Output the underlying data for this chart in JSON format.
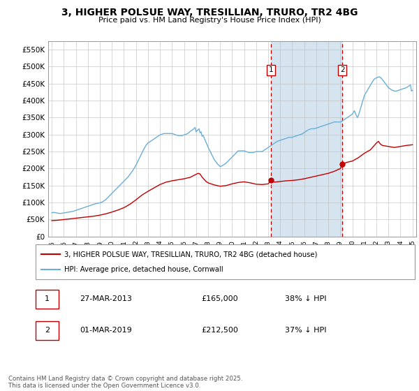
{
  "title": "3, HIGHER POLSUE WAY, TRESILLIAN, TRURO, TR2 4BG",
  "subtitle": "Price paid vs. HM Land Registry's House Price Index (HPI)",
  "ylim": [
    0,
    575000
  ],
  "yticks": [
    0,
    50000,
    100000,
    150000,
    200000,
    250000,
    300000,
    350000,
    400000,
    450000,
    500000,
    550000
  ],
  "xlim_start": 1994.7,
  "xlim_end": 2025.3,
  "marker1_date": 2013.23,
  "marker2_date": 2019.17,
  "marker1_price": 165000,
  "marker2_price": 212500,
  "legend_line1": "3, HIGHER POLSUE WAY, TRESILLIAN, TRURO, TR2 4BG (detached house)",
  "legend_line2": "HPI: Average price, detached house, Cornwall",
  "table_row1": [
    "1",
    "27-MAR-2013",
    "£165,000",
    "38% ↓ HPI"
  ],
  "table_row2": [
    "2",
    "01-MAR-2019",
    "£212,500",
    "37% ↓ HPI"
  ],
  "footer": "Contains HM Land Registry data © Crown copyright and database right 2025.\nThis data is licensed under the Open Government Licence v3.0.",
  "hpi_color": "#6baed6",
  "price_color": "#c00000",
  "shading_color": "#d6e4f0",
  "grid_color": "#bbbbbb",
  "hpi_data": [
    [
      1995.0,
      70000
    ],
    [
      1995.08,
      70500
    ],
    [
      1995.17,
      71000
    ],
    [
      1995.25,
      70500
    ],
    [
      1995.33,
      70000
    ],
    [
      1995.42,
      69500
    ],
    [
      1995.5,
      69000
    ],
    [
      1995.58,
      68500
    ],
    [
      1995.67,
      68000
    ],
    [
      1995.75,
      68000
    ],
    [
      1995.83,
      68500
    ],
    [
      1995.92,
      69000
    ],
    [
      1996.0,
      69500
    ],
    [
      1996.08,
      70000
    ],
    [
      1996.17,
      70500
    ],
    [
      1996.25,
      71000
    ],
    [
      1996.33,
      71500
    ],
    [
      1996.42,
      72000
    ],
    [
      1996.5,
      72500
    ],
    [
      1996.58,
      73000
    ],
    [
      1996.67,
      73500
    ],
    [
      1996.75,
      74000
    ],
    [
      1996.83,
      75000
    ],
    [
      1996.92,
      76000
    ],
    [
      1997.0,
      77000
    ],
    [
      1997.08,
      78000
    ],
    [
      1997.17,
      79000
    ],
    [
      1997.25,
      80000
    ],
    [
      1997.33,
      81000
    ],
    [
      1997.42,
      82000
    ],
    [
      1997.5,
      83000
    ],
    [
      1997.58,
      84000
    ],
    [
      1997.67,
      85000
    ],
    [
      1997.75,
      86000
    ],
    [
      1997.83,
      87000
    ],
    [
      1997.92,
      88000
    ],
    [
      1998.0,
      89000
    ],
    [
      1998.08,
      90000
    ],
    [
      1998.17,
      91000
    ],
    [
      1998.25,
      92000
    ],
    [
      1998.33,
      93000
    ],
    [
      1998.42,
      94000
    ],
    [
      1998.5,
      95000
    ],
    [
      1998.58,
      96000
    ],
    [
      1998.67,
      97000
    ],
    [
      1998.75,
      97500
    ],
    [
      1998.83,
      98000
    ],
    [
      1998.92,
      98500
    ],
    [
      1999.0,
      99000
    ],
    [
      1999.08,
      100000
    ],
    [
      1999.17,
      101000
    ],
    [
      1999.25,
      103000
    ],
    [
      1999.33,
      105000
    ],
    [
      1999.42,
      107000
    ],
    [
      1999.5,
      109000
    ],
    [
      1999.58,
      112000
    ],
    [
      1999.67,
      115000
    ],
    [
      1999.75,
      118000
    ],
    [
      1999.83,
      121000
    ],
    [
      1999.92,
      124000
    ],
    [
      2000.0,
      127000
    ],
    [
      2000.08,
      130000
    ],
    [
      2000.17,
      133000
    ],
    [
      2000.25,
      136000
    ],
    [
      2000.33,
      139000
    ],
    [
      2000.42,
      142000
    ],
    [
      2000.5,
      145000
    ],
    [
      2000.58,
      148000
    ],
    [
      2000.67,
      151000
    ],
    [
      2000.75,
      154000
    ],
    [
      2000.83,
      157000
    ],
    [
      2000.92,
      160000
    ],
    [
      2001.0,
      163000
    ],
    [
      2001.08,
      166000
    ],
    [
      2001.17,
      169000
    ],
    [
      2001.25,
      172000
    ],
    [
      2001.33,
      175000
    ],
    [
      2001.42,
      179000
    ],
    [
      2001.5,
      183000
    ],
    [
      2001.58,
      187000
    ],
    [
      2001.67,
      191000
    ],
    [
      2001.75,
      195000
    ],
    [
      2001.83,
      200000
    ],
    [
      2001.92,
      205000
    ],
    [
      2002.0,
      210000
    ],
    [
      2002.08,
      216000
    ],
    [
      2002.17,
      222000
    ],
    [
      2002.25,
      228000
    ],
    [
      2002.33,
      234000
    ],
    [
      2002.42,
      240000
    ],
    [
      2002.5,
      246000
    ],
    [
      2002.58,
      252000
    ],
    [
      2002.67,
      258000
    ],
    [
      2002.75,
      263000
    ],
    [
      2002.83,
      268000
    ],
    [
      2002.92,
      272000
    ],
    [
      2003.0,
      275000
    ],
    [
      2003.08,
      277000
    ],
    [
      2003.17,
      279000
    ],
    [
      2003.25,
      281000
    ],
    [
      2003.33,
      283000
    ],
    [
      2003.42,
      285000
    ],
    [
      2003.5,
      287000
    ],
    [
      2003.58,
      289000
    ],
    [
      2003.67,
      291000
    ],
    [
      2003.75,
      293000
    ],
    [
      2003.83,
      295000
    ],
    [
      2003.92,
      297000
    ],
    [
      2004.0,
      299000
    ],
    [
      2004.08,
      300000
    ],
    [
      2004.17,
      301000
    ],
    [
      2004.25,
      302000
    ],
    [
      2004.33,
      303000
    ],
    [
      2004.42,
      303000
    ],
    [
      2004.5,
      303000
    ],
    [
      2004.58,
      303000
    ],
    [
      2004.67,
      303000
    ],
    [
      2004.75,
      303000
    ],
    [
      2004.83,
      303000
    ],
    [
      2004.92,
      303000
    ],
    [
      2005.0,
      303000
    ],
    [
      2005.08,
      302000
    ],
    [
      2005.17,
      301000
    ],
    [
      2005.25,
      300000
    ],
    [
      2005.33,
      299000
    ],
    [
      2005.42,
      298000
    ],
    [
      2005.5,
      297000
    ],
    [
      2005.58,
      297000
    ],
    [
      2005.67,
      297000
    ],
    [
      2005.75,
      297000
    ],
    [
      2005.83,
      297000
    ],
    [
      2005.92,
      298000
    ],
    [
      2006.0,
      299000
    ],
    [
      2006.08,
      300000
    ],
    [
      2006.17,
      301000
    ],
    [
      2006.25,
      302000
    ],
    [
      2006.33,
      304000
    ],
    [
      2006.42,
      306000
    ],
    [
      2006.5,
      309000
    ],
    [
      2006.58,
      311000
    ],
    [
      2006.67,
      313000
    ],
    [
      2006.75,
      315000
    ],
    [
      2006.83,
      318000
    ],
    [
      2006.92,
      321000
    ],
    [
      2007.0,
      308000
    ],
    [
      2007.08,
      311000
    ],
    [
      2007.17,
      314000
    ],
    [
      2007.25,
      317000
    ],
    [
      2007.33,
      305000
    ],
    [
      2007.42,
      308000
    ],
    [
      2007.5,
      295000
    ],
    [
      2007.58,
      298000
    ],
    [
      2007.67,
      291000
    ],
    [
      2007.75,
      284000
    ],
    [
      2007.83,
      277000
    ],
    [
      2007.92,
      270000
    ],
    [
      2008.0,
      263000
    ],
    [
      2008.08,
      257000
    ],
    [
      2008.17,
      251000
    ],
    [
      2008.25,
      245000
    ],
    [
      2008.33,
      239000
    ],
    [
      2008.42,
      233000
    ],
    [
      2008.5,
      227000
    ],
    [
      2008.58,
      223000
    ],
    [
      2008.67,
      219000
    ],
    [
      2008.75,
      215000
    ],
    [
      2008.83,
      212000
    ],
    [
      2008.92,
      209000
    ],
    [
      2009.0,
      206000
    ],
    [
      2009.08,
      207000
    ],
    [
      2009.17,
      208000
    ],
    [
      2009.25,
      210000
    ],
    [
      2009.33,
      212000
    ],
    [
      2009.42,
      214000
    ],
    [
      2009.5,
      216000
    ],
    [
      2009.58,
      219000
    ],
    [
      2009.67,
      222000
    ],
    [
      2009.75,
      225000
    ],
    [
      2009.83,
      228000
    ],
    [
      2009.92,
      231000
    ],
    [
      2010.0,
      234000
    ],
    [
      2010.08,
      237000
    ],
    [
      2010.17,
      240000
    ],
    [
      2010.25,
      243000
    ],
    [
      2010.33,
      246000
    ],
    [
      2010.42,
      249000
    ],
    [
      2010.5,
      252000
    ],
    [
      2010.58,
      252000
    ],
    [
      2010.67,
      252000
    ],
    [
      2010.75,
      252000
    ],
    [
      2010.83,
      252000
    ],
    [
      2010.92,
      252000
    ],
    [
      2011.0,
      252000
    ],
    [
      2011.08,
      251000
    ],
    [
      2011.17,
      250000
    ],
    [
      2011.25,
      249000
    ],
    [
      2011.33,
      248000
    ],
    [
      2011.42,
      247000
    ],
    [
      2011.5,
      247000
    ],
    [
      2011.58,
      247000
    ],
    [
      2011.67,
      247000
    ],
    [
      2011.75,
      247000
    ],
    [
      2011.83,
      248000
    ],
    [
      2011.92,
      249000
    ],
    [
      2012.0,
      250000
    ],
    [
      2012.08,
      250000
    ],
    [
      2012.17,
      250000
    ],
    [
      2012.25,
      250000
    ],
    [
      2012.33,
      250000
    ],
    [
      2012.42,
      250000
    ],
    [
      2012.5,
      250000
    ],
    [
      2012.58,
      252000
    ],
    [
      2012.67,
      254000
    ],
    [
      2012.75,
      256000
    ],
    [
      2012.83,
      258000
    ],
    [
      2012.92,
      260000
    ],
    [
      2013.0,
      262000
    ],
    [
      2013.08,
      264000
    ],
    [
      2013.17,
      266000
    ],
    [
      2013.25,
      268000
    ],
    [
      2013.33,
      270000
    ],
    [
      2013.42,
      272000
    ],
    [
      2013.5,
      274000
    ],
    [
      2013.58,
      276000
    ],
    [
      2013.67,
      278000
    ],
    [
      2013.75,
      280000
    ],
    [
      2013.83,
      281000
    ],
    [
      2013.92,
      282000
    ],
    [
      2014.0,
      283000
    ],
    [
      2014.08,
      284000
    ],
    [
      2014.17,
      285000
    ],
    [
      2014.25,
      286000
    ],
    [
      2014.33,
      287000
    ],
    [
      2014.42,
      288000
    ],
    [
      2014.5,
      289000
    ],
    [
      2014.58,
      290000
    ],
    [
      2014.67,
      291000
    ],
    [
      2014.75,
      292000
    ],
    [
      2014.83,
      292000
    ],
    [
      2014.92,
      292000
    ],
    [
      2015.0,
      292000
    ],
    [
      2015.08,
      293000
    ],
    [
      2015.17,
      294000
    ],
    [
      2015.25,
      295000
    ],
    [
      2015.33,
      296000
    ],
    [
      2015.42,
      297000
    ],
    [
      2015.5,
      298000
    ],
    [
      2015.58,
      299000
    ],
    [
      2015.67,
      300000
    ],
    [
      2015.75,
      301000
    ],
    [
      2015.83,
      302000
    ],
    [
      2015.92,
      304000
    ],
    [
      2016.0,
      306000
    ],
    [
      2016.08,
      308000
    ],
    [
      2016.17,
      310000
    ],
    [
      2016.25,
      312000
    ],
    [
      2016.33,
      314000
    ],
    [
      2016.42,
      315000
    ],
    [
      2016.5,
      316000
    ],
    [
      2016.58,
      317000
    ],
    [
      2016.67,
      317000
    ],
    [
      2016.75,
      317000
    ],
    [
      2016.83,
      317000
    ],
    [
      2016.92,
      318000
    ],
    [
      2017.0,
      319000
    ],
    [
      2017.08,
      320000
    ],
    [
      2017.17,
      321000
    ],
    [
      2017.25,
      322000
    ],
    [
      2017.33,
      323000
    ],
    [
      2017.42,
      324000
    ],
    [
      2017.5,
      325000
    ],
    [
      2017.58,
      326000
    ],
    [
      2017.67,
      327000
    ],
    [
      2017.75,
      328000
    ],
    [
      2017.83,
      329000
    ],
    [
      2017.92,
      330000
    ],
    [
      2018.0,
      331000
    ],
    [
      2018.08,
      332000
    ],
    [
      2018.17,
      333000
    ],
    [
      2018.25,
      334000
    ],
    [
      2018.33,
      335000
    ],
    [
      2018.42,
      336000
    ],
    [
      2018.5,
      337000
    ],
    [
      2018.58,
      337000
    ],
    [
      2018.67,
      337000
    ],
    [
      2018.75,
      337000
    ],
    [
      2018.83,
      337000
    ],
    [
      2018.92,
      337000
    ],
    [
      2019.0,
      337000
    ],
    [
      2019.08,
      338000
    ],
    [
      2019.17,
      340000
    ],
    [
      2019.25,
      342000
    ],
    [
      2019.33,
      344000
    ],
    [
      2019.42,
      346000
    ],
    [
      2019.5,
      348000
    ],
    [
      2019.58,
      350000
    ],
    [
      2019.67,
      352000
    ],
    [
      2019.75,
      354000
    ],
    [
      2019.83,
      356000
    ],
    [
      2019.92,
      358000
    ],
    [
      2020.0,
      360000
    ],
    [
      2020.08,
      365000
    ],
    [
      2020.17,
      370000
    ],
    [
      2020.25,
      363000
    ],
    [
      2020.33,
      356000
    ],
    [
      2020.42,
      350000
    ],
    [
      2020.5,
      355000
    ],
    [
      2020.58,
      365000
    ],
    [
      2020.67,
      375000
    ],
    [
      2020.75,
      385000
    ],
    [
      2020.83,
      395000
    ],
    [
      2020.92,
      405000
    ],
    [
      2021.0,
      415000
    ],
    [
      2021.08,
      420000
    ],
    [
      2021.17,
      425000
    ],
    [
      2021.25,
      430000
    ],
    [
      2021.33,
      435000
    ],
    [
      2021.42,
      440000
    ],
    [
      2021.5,
      445000
    ],
    [
      2021.58,
      450000
    ],
    [
      2021.67,
      455000
    ],
    [
      2021.75,
      460000
    ],
    [
      2021.83,
      463000
    ],
    [
      2021.92,
      465000
    ],
    [
      2022.0,
      467000
    ],
    [
      2022.08,
      468000
    ],
    [
      2022.17,
      469000
    ],
    [
      2022.25,
      470000
    ],
    [
      2022.33,
      468000
    ],
    [
      2022.42,
      465000
    ],
    [
      2022.5,
      462000
    ],
    [
      2022.58,
      458000
    ],
    [
      2022.67,
      454000
    ],
    [
      2022.75,
      450000
    ],
    [
      2022.83,
      446000
    ],
    [
      2022.92,
      442000
    ],
    [
      2023.0,
      438000
    ],
    [
      2023.08,
      436000
    ],
    [
      2023.17,
      434000
    ],
    [
      2023.25,
      432000
    ],
    [
      2023.33,
      430000
    ],
    [
      2023.42,
      429000
    ],
    [
      2023.5,
      428000
    ],
    [
      2023.58,
      428000
    ],
    [
      2023.67,
      428000
    ],
    [
      2023.75,
      429000
    ],
    [
      2023.83,
      430000
    ],
    [
      2023.92,
      431000
    ],
    [
      2024.0,
      432000
    ],
    [
      2024.08,
      433000
    ],
    [
      2024.17,
      434000
    ],
    [
      2024.25,
      435000
    ],
    [
      2024.33,
      436000
    ],
    [
      2024.42,
      437000
    ],
    [
      2024.5,
      438000
    ],
    [
      2024.58,
      440000
    ],
    [
      2024.67,
      442000
    ],
    [
      2024.75,
      444000
    ],
    [
      2024.83,
      446000
    ],
    [
      2024.92,
      428000
    ],
    [
      2025.0,
      430000
    ]
  ],
  "price_data": [
    [
      1995.0,
      47000
    ],
    [
      1995.5,
      48000
    ],
    [
      1996.0,
      50000
    ],
    [
      1996.5,
      52000
    ],
    [
      1997.0,
      54000
    ],
    [
      1997.5,
      56000
    ],
    [
      1998.0,
      58000
    ],
    [
      1998.5,
      60000
    ],
    [
      1999.0,
      63000
    ],
    [
      1999.5,
      67000
    ],
    [
      2000.0,
      72000
    ],
    [
      2000.5,
      78000
    ],
    [
      2001.0,
      85000
    ],
    [
      2001.5,
      95000
    ],
    [
      2002.0,
      108000
    ],
    [
      2002.5,
      122000
    ],
    [
      2003.0,
      133000
    ],
    [
      2003.5,
      143000
    ],
    [
      2004.0,
      153000
    ],
    [
      2004.5,
      160000
    ],
    [
      2005.0,
      164000
    ],
    [
      2005.5,
      167000
    ],
    [
      2006.0,
      170000
    ],
    [
      2006.5,
      174000
    ],
    [
      2007.0,
      183000
    ],
    [
      2007.17,
      186000
    ],
    [
      2007.33,
      184000
    ],
    [
      2007.5,
      175000
    ],
    [
      2007.67,
      168000
    ],
    [
      2007.83,
      162000
    ],
    [
      2008.0,
      158000
    ],
    [
      2008.5,
      152000
    ],
    [
      2009.0,
      148000
    ],
    [
      2009.5,
      150000
    ],
    [
      2010.0,
      155000
    ],
    [
      2010.5,
      159000
    ],
    [
      2011.0,
      161000
    ],
    [
      2011.5,
      158000
    ],
    [
      2012.0,
      154000
    ],
    [
      2012.5,
      153000
    ],
    [
      2013.0,
      155000
    ],
    [
      2013.23,
      165000
    ],
    [
      2013.5,
      160000
    ],
    [
      2014.0,
      162000
    ],
    [
      2014.5,
      164000
    ],
    [
      2015.0,
      165000
    ],
    [
      2015.5,
      167000
    ],
    [
      2016.0,
      170000
    ],
    [
      2016.5,
      174000
    ],
    [
      2017.0,
      178000
    ],
    [
      2017.5,
      182000
    ],
    [
      2018.0,
      186000
    ],
    [
      2018.5,
      192000
    ],
    [
      2019.0,
      200000
    ],
    [
      2019.17,
      212500
    ],
    [
      2019.5,
      218000
    ],
    [
      2020.0,
      222000
    ],
    [
      2020.5,
      232000
    ],
    [
      2021.0,
      245000
    ],
    [
      2021.5,
      255000
    ],
    [
      2022.0,
      275000
    ],
    [
      2022.17,
      280000
    ],
    [
      2022.33,
      272000
    ],
    [
      2022.5,
      268000
    ],
    [
      2023.0,
      265000
    ],
    [
      2023.5,
      262000
    ],
    [
      2024.0,
      265000
    ],
    [
      2024.5,
      268000
    ],
    [
      2025.0,
      270000
    ]
  ]
}
